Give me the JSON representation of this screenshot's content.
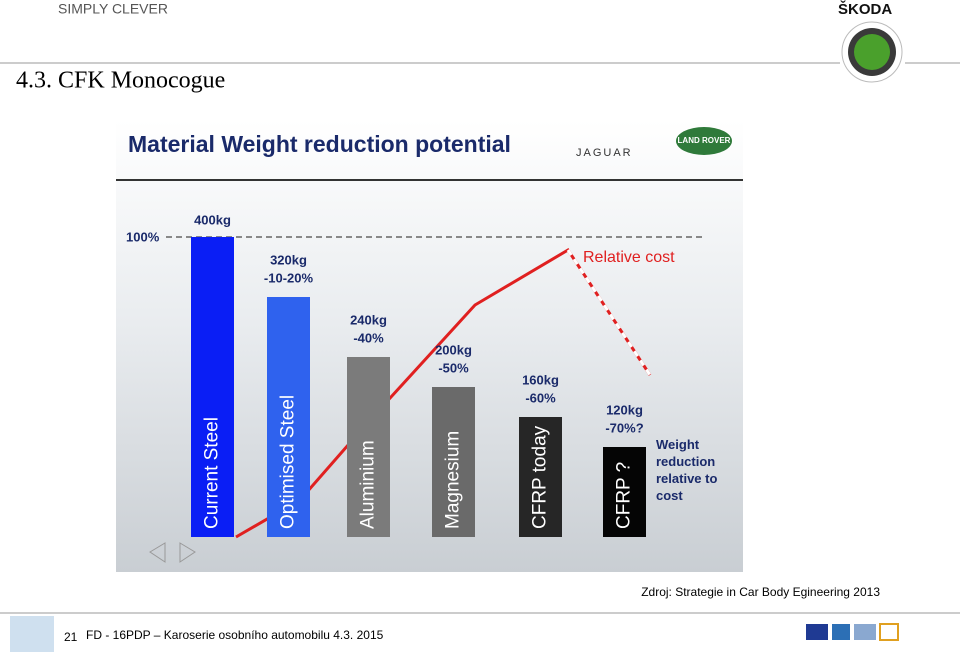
{
  "header": {
    "brand": "SIMPLY CLEVER",
    "logo": "ŠKODA",
    "title": "4.3. CFK Monocogue"
  },
  "chart_data": {
    "type": "bar",
    "title": "Material Weight reduction potential",
    "logos": [
      "JAGUAR",
      "LAND ROVER"
    ],
    "categories": [
      "Current Steel",
      "Optimised Steel",
      "Aluminium",
      "Magnesium",
      "CFRP today",
      "CFRP ?"
    ],
    "values": [
      400,
      320,
      240,
      200,
      160,
      120
    ],
    "value_labels": [
      "400kg",
      "320kg",
      "240kg",
      "200kg",
      "160kg",
      "120kg"
    ],
    "reduction_labels": [
      "-10-20%",
      "-40%",
      "-50%",
      "-60%",
      "-70%?"
    ],
    "colors": [
      "#0a1ef5",
      "#2f62ee",
      "#7b7b7b",
      "#6a6a6a",
      "#262626",
      "#050505"
    ],
    "reference_label": "100%",
    "line_label": "Relative cost",
    "note": "Weight reduction relative to cost"
  },
  "source": "Zdroj: Strategie in Car Body Egineering 2013",
  "footer": {
    "page": "21",
    "text": "FD - 16PDP – Karoserie osobního automobilu 4.3. 2015"
  }
}
